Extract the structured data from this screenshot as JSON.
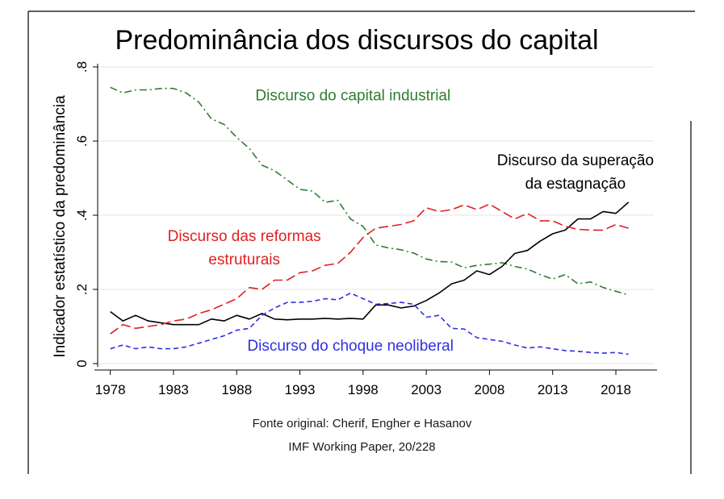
{
  "chart_data": {
    "type": "line",
    "title": "Predominância dos discursos do capital",
    "ylabel": "Indicador estatístico da predominância",
    "xlabel": "",
    "xlim": [
      1977,
      2021
    ],
    "ylim": [
      0,
      0.8
    ],
    "xticks": [
      1978,
      1983,
      1988,
      1993,
      1998,
      2003,
      2008,
      2013,
      2018
    ],
    "xtick_labels": [
      "1978",
      "1983",
      "1988",
      "1993",
      "1998",
      "2003",
      "2008",
      "2013",
      "2018"
    ],
    "yticks": [
      0,
      0.2,
      0.4,
      0.6,
      0.8
    ],
    "ytick_labels": [
      "0",
      ".2",
      ".4",
      ".6",
      ".8"
    ],
    "grid": true,
    "x": [
      1978,
      1979,
      1980,
      1981,
      1982,
      1983,
      1984,
      1985,
      1986,
      1987,
      1988,
      1989,
      1990,
      1991,
      1992,
      1993,
      1994,
      1995,
      1996,
      1997,
      1998,
      1999,
      2000,
      2001,
      2002,
      2003,
      2004,
      2005,
      2006,
      2007,
      2008,
      2009,
      2010,
      2011,
      2012,
      2013,
      2014,
      2015,
      2016,
      2017,
      2018,
      2019
    ],
    "series": [
      {
        "name": "Discurso do capital industrial",
        "color": "#2e7d32",
        "dash": "dashdot",
        "values": [
          0.745,
          0.73,
          0.738,
          0.738,
          0.742,
          0.742,
          0.73,
          0.705,
          0.66,
          0.645,
          0.61,
          0.58,
          0.535,
          0.52,
          0.495,
          0.47,
          0.465,
          0.435,
          0.44,
          0.39,
          0.37,
          0.32,
          0.312,
          0.307,
          0.298,
          0.282,
          0.275,
          0.274,
          0.258,
          0.265,
          0.268,
          0.272,
          0.262,
          0.255,
          0.24,
          0.228,
          0.24,
          0.215,
          0.22,
          0.205,
          0.195,
          0.185
        ]
      },
      {
        "name": "Discurso da superação da estagnação",
        "color": "#000000",
        "dash": "solid",
        "values": [
          0.14,
          0.115,
          0.13,
          0.115,
          0.11,
          0.105,
          0.105,
          0.105,
          0.12,
          0.115,
          0.13,
          0.12,
          0.135,
          0.12,
          0.118,
          0.12,
          0.12,
          0.122,
          0.12,
          0.122,
          0.12,
          0.158,
          0.158,
          0.15,
          0.155,
          0.17,
          0.19,
          0.215,
          0.225,
          0.25,
          0.24,
          0.262,
          0.297,
          0.305,
          0.33,
          0.35,
          0.36,
          0.39,
          0.39,
          0.41,
          0.405,
          0.435
        ]
      },
      {
        "name": "Discurso das reformas estruturais",
        "color": "#e02020",
        "dash": "longdash",
        "values": [
          0.08,
          0.105,
          0.095,
          0.1,
          0.105,
          0.115,
          0.12,
          0.135,
          0.145,
          0.16,
          0.175,
          0.205,
          0.2,
          0.225,
          0.225,
          0.245,
          0.25,
          0.265,
          0.27,
          0.3,
          0.34,
          0.365,
          0.37,
          0.375,
          0.385,
          0.42,
          0.41,
          0.415,
          0.428,
          0.415,
          0.43,
          0.41,
          0.39,
          0.405,
          0.385,
          0.385,
          0.37,
          0.362,
          0.36,
          0.36,
          0.375,
          0.365
        ]
      },
      {
        "name": "Discurso do choque neoliberal",
        "color": "#3030e0",
        "dash": "shortdash",
        "values": [
          0.04,
          0.05,
          0.04,
          0.045,
          0.04,
          0.04,
          0.045,
          0.055,
          0.065,
          0.075,
          0.09,
          0.095,
          0.13,
          0.15,
          0.165,
          0.165,
          0.168,
          0.175,
          0.172,
          0.19,
          0.175,
          0.16,
          0.162,
          0.165,
          0.16,
          0.125,
          0.13,
          0.095,
          0.093,
          0.07,
          0.065,
          0.06,
          0.05,
          0.042,
          0.045,
          0.04,
          0.035,
          0.033,
          0.03,
          0.028,
          0.03,
          0.025
        ]
      }
    ],
    "annotations": [
      {
        "lines": [
          "Discurso do capital industrial"
        ],
        "color": "#2e7d32"
      },
      {
        "lines": [
          "Discurso da superação",
          "da estagnação"
        ],
        "color": "#000000"
      },
      {
        "lines": [
          "Discurso das reformas",
          "estruturais"
        ],
        "color": "#e02020"
      },
      {
        "lines": [
          "Discurso do choque neoliberal"
        ],
        "color": "#3030e0"
      }
    ]
  },
  "source": {
    "line1": "Fonte original: Cherif, Engher e Hasanov",
    "line2": "IMF Working Paper, 20/228"
  }
}
